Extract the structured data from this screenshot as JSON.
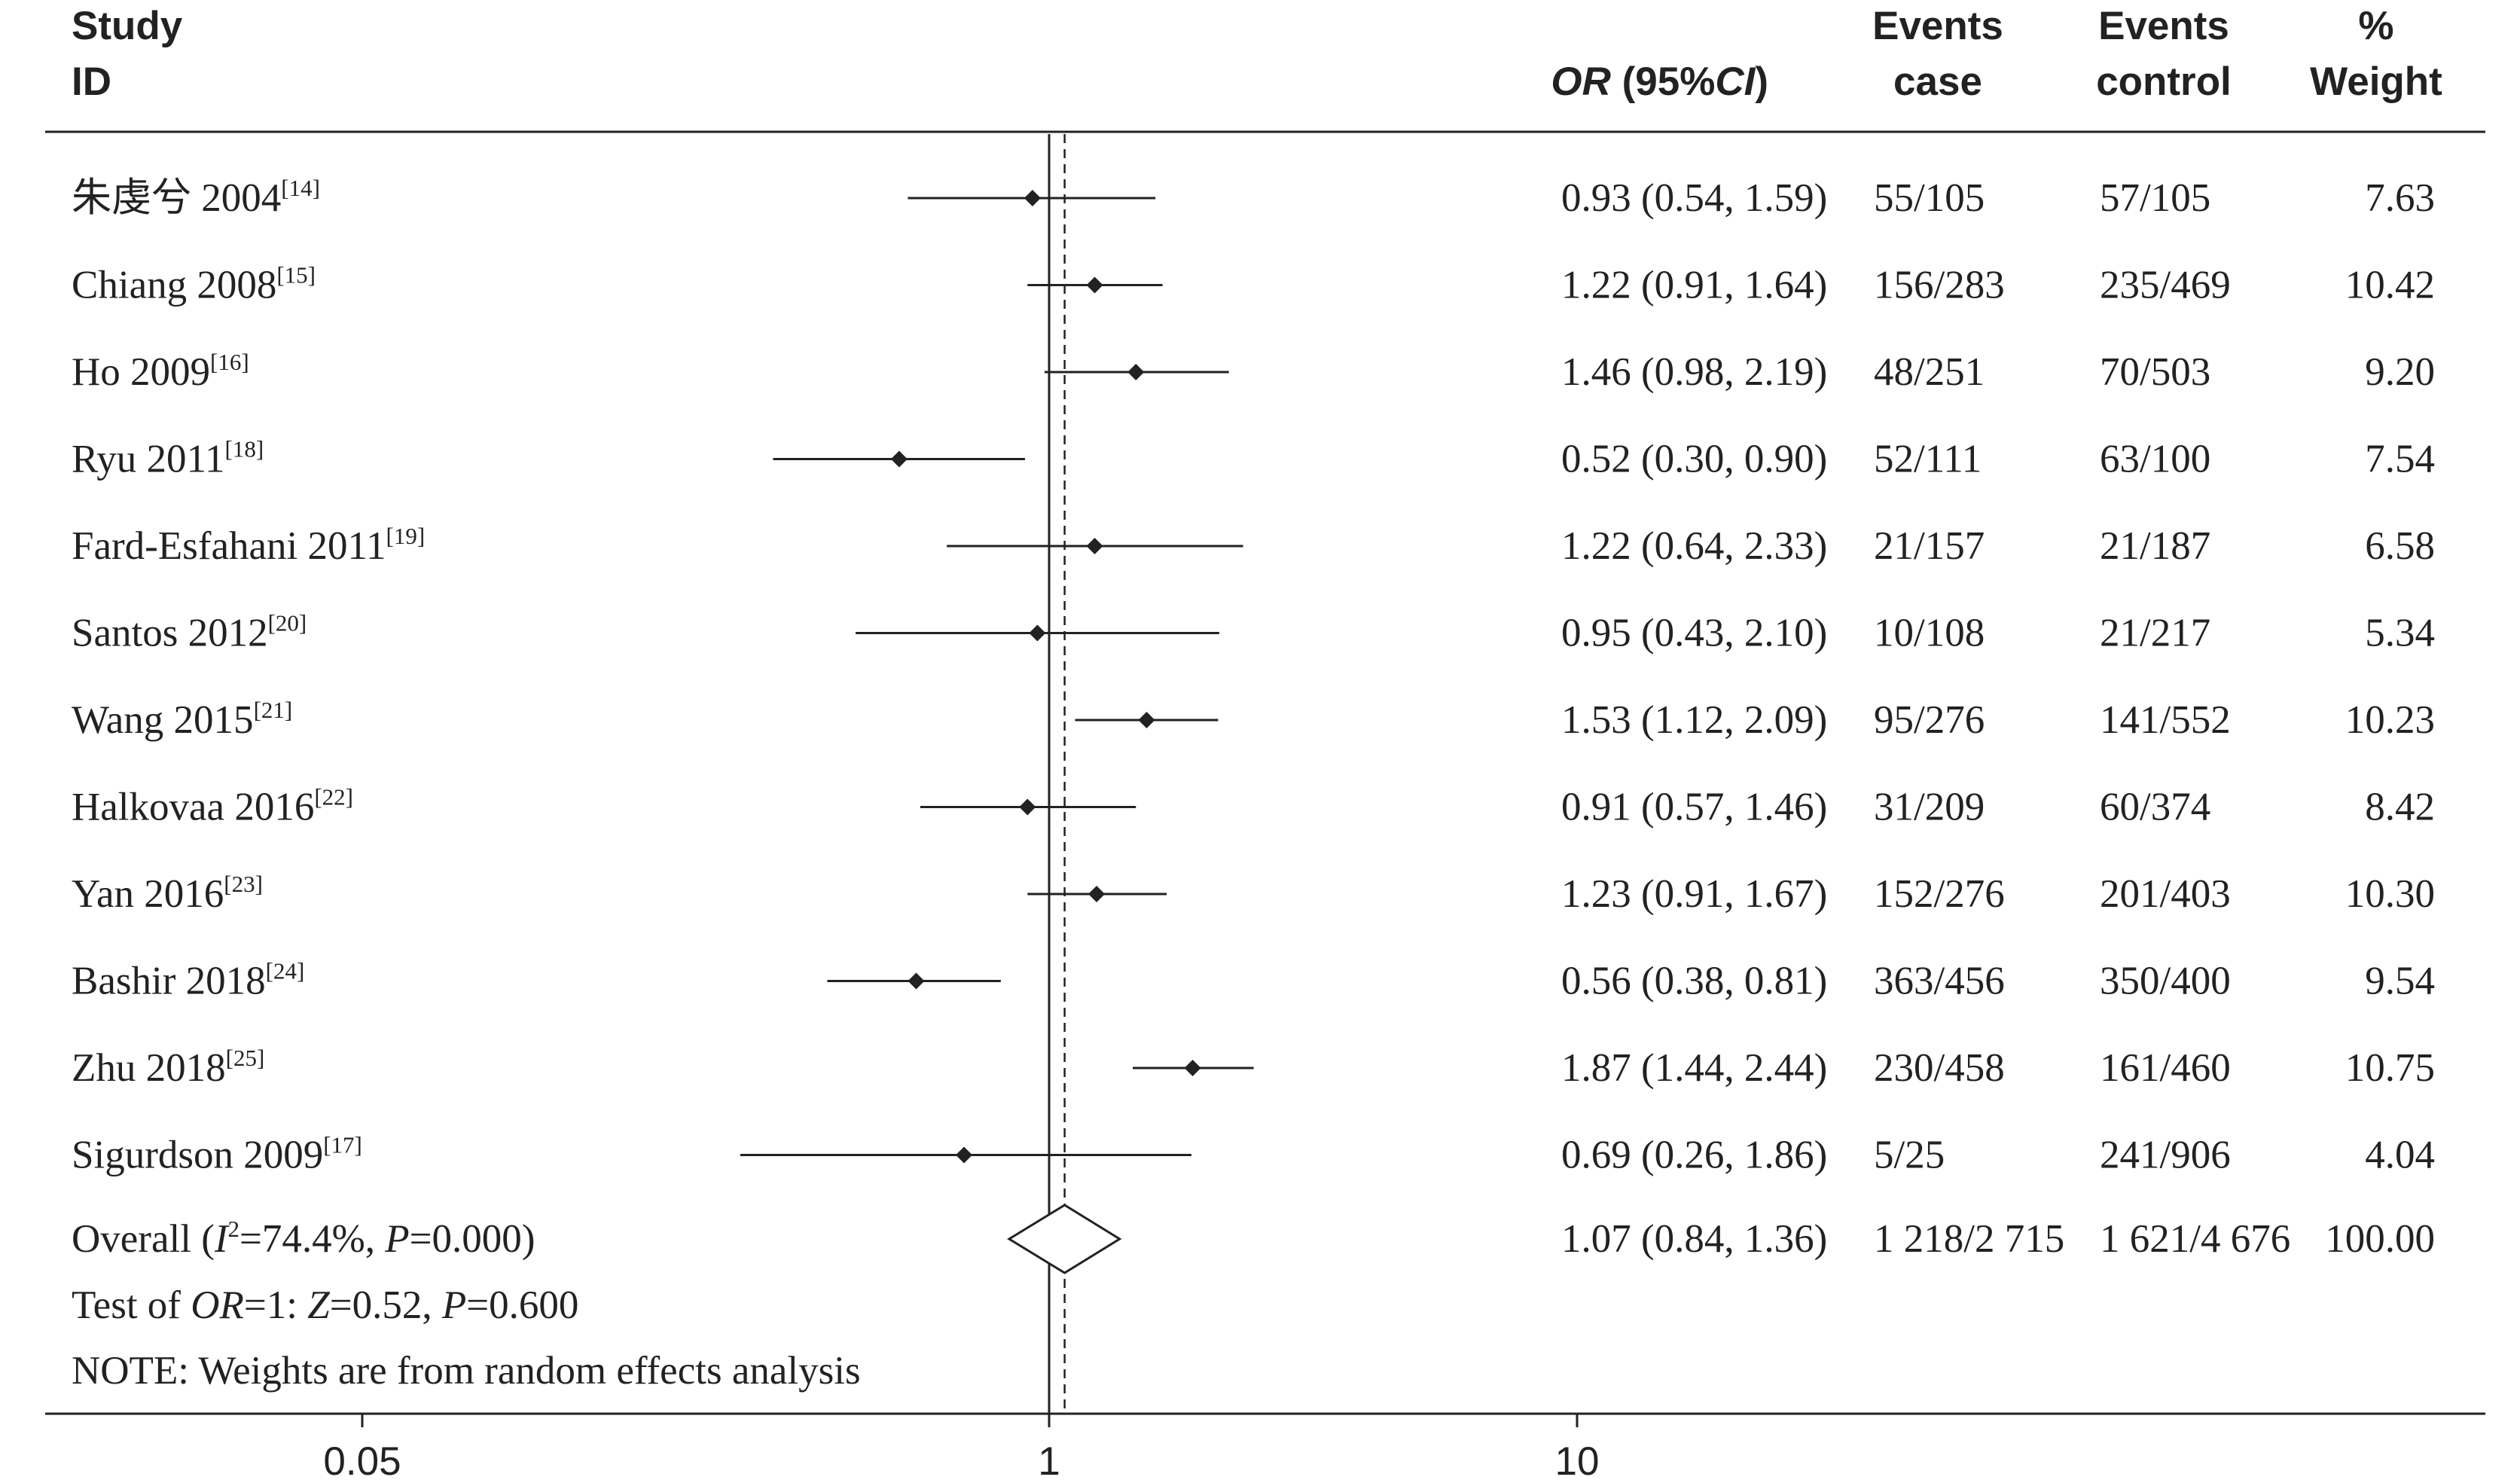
{
  "header": {
    "study": "Study",
    "id": "ID",
    "or_label": "OR",
    "or_ci": " (95%",
    "ci": "CI",
    "ci_close": ")",
    "events_case_1": "Events",
    "events_case_2": "case",
    "events_control_1": "Events",
    "events_control_2": "control",
    "weight_1": "%",
    "weight_2": "Weight"
  },
  "chart_data": {
    "type": "forest",
    "x_scale": "log",
    "x_ticks": [
      {
        "value": 0.05,
        "label": "0.05"
      },
      {
        "value": 1,
        "label": "1"
      },
      {
        "value": 10,
        "label": "10"
      }
    ],
    "null_line": 1,
    "pooled_estimate_line": 1.07,
    "studies": [
      {
        "name": "朱虔兮 2004",
        "ref": "[14]",
        "or": 0.93,
        "lo": 0.54,
        "hi": 1.59,
        "or_text": "0.93 (0.54, 1.59)",
        "case": "55/105",
        "control": "57/105",
        "weight": "7.63"
      },
      {
        "name": "Chiang 2008",
        "ref": "[15]",
        "or": 1.22,
        "lo": 0.91,
        "hi": 1.64,
        "or_text": "1.22 (0.91, 1.64)",
        "case": "156/283",
        "control": "235/469",
        "weight": "10.42"
      },
      {
        "name": "Ho 2009",
        "ref": "[16]",
        "or": 1.46,
        "lo": 0.98,
        "hi": 2.19,
        "or_text": "1.46 (0.98, 2.19)",
        "case": "48/251",
        "control": "70/503",
        "weight": "9.20"
      },
      {
        "name": "Ryu 2011",
        "ref": "[18]",
        "or": 0.52,
        "lo": 0.3,
        "hi": 0.9,
        "or_text": "0.52 (0.30, 0.90)",
        "case": "52/111",
        "control": "63/100",
        "weight": "7.54"
      },
      {
        "name": "Fard-Esfahani 2011",
        "ref": "[19]",
        "or": 1.22,
        "lo": 0.64,
        "hi": 2.33,
        "or_text": "1.22 (0.64, 2.33)",
        "case": "21/157",
        "control": "21/187",
        "weight": "6.58"
      },
      {
        "name": "Santos 2012",
        "ref": "[20]",
        "or": 0.95,
        "lo": 0.43,
        "hi": 2.1,
        "or_text": "0.95 (0.43, 2.10)",
        "case": "10/108",
        "control": "21/217",
        "weight": "5.34"
      },
      {
        "name": "Wang 2015",
        "ref": "[21]",
        "or": 1.53,
        "lo": 1.12,
        "hi": 2.09,
        "or_text": "1.53 (1.12, 2.09)",
        "case": "95/276",
        "control": "141/552",
        "weight": "10.23"
      },
      {
        "name": "Halkovaa 2016",
        "ref": "[22]",
        "or": 0.91,
        "lo": 0.57,
        "hi": 1.46,
        "or_text": "0.91 (0.57, 1.46)",
        "case": "31/209",
        "control": "60/374",
        "weight": "8.42"
      },
      {
        "name": "Yan 2016",
        "ref": "[23]",
        "or": 1.23,
        "lo": 0.91,
        "hi": 1.67,
        "or_text": "1.23 (0.91, 1.67)",
        "case": "152/276",
        "control": "201/403",
        "weight": "10.30"
      },
      {
        "name": "Bashir 2018",
        "ref": "[24]",
        "or": 0.56,
        "lo": 0.38,
        "hi": 0.81,
        "or_text": "0.56 (0.38, 0.81)",
        "case": "363/456",
        "control": "350/400",
        "weight": "9.54"
      },
      {
        "name": "Zhu 2018",
        "ref": "[25]",
        "or": 1.87,
        "lo": 1.44,
        "hi": 2.44,
        "or_text": "1.87 (1.44, 2.44)",
        "case": "230/458",
        "control": "161/460",
        "weight": "10.75"
      },
      {
        "name": "Sigurdson 2009",
        "ref": "[17]",
        "or": 0.69,
        "lo": 0.26,
        "hi": 1.86,
        "or_text": "0.69 (0.26, 1.86)",
        "case": "5/25",
        "control": "241/906",
        "weight": "4.04"
      }
    ],
    "overall": {
      "label": "Overall",
      "i2_symbol": "I",
      "i2_power": "2",
      "i2_value": "=74.4%, ",
      "p_symbol": "P",
      "p_value": "=0.000",
      "or": 1.07,
      "lo": 0.84,
      "hi": 1.36,
      "or_text": "1.07 (0.84, 1.36)",
      "case": "1 218/2 715",
      "control": "1 621/4 676",
      "weight": "100.00"
    },
    "test_line": {
      "prefix": "Test of ",
      "or_label": "OR",
      "or_value": "=1: ",
      "z_symbol": "Z",
      "z_value": "=0.52, ",
      "p_symbol": "P",
      "p_value": "=0.600"
    },
    "note": "NOTE: Weights are from random effects analysis"
  }
}
